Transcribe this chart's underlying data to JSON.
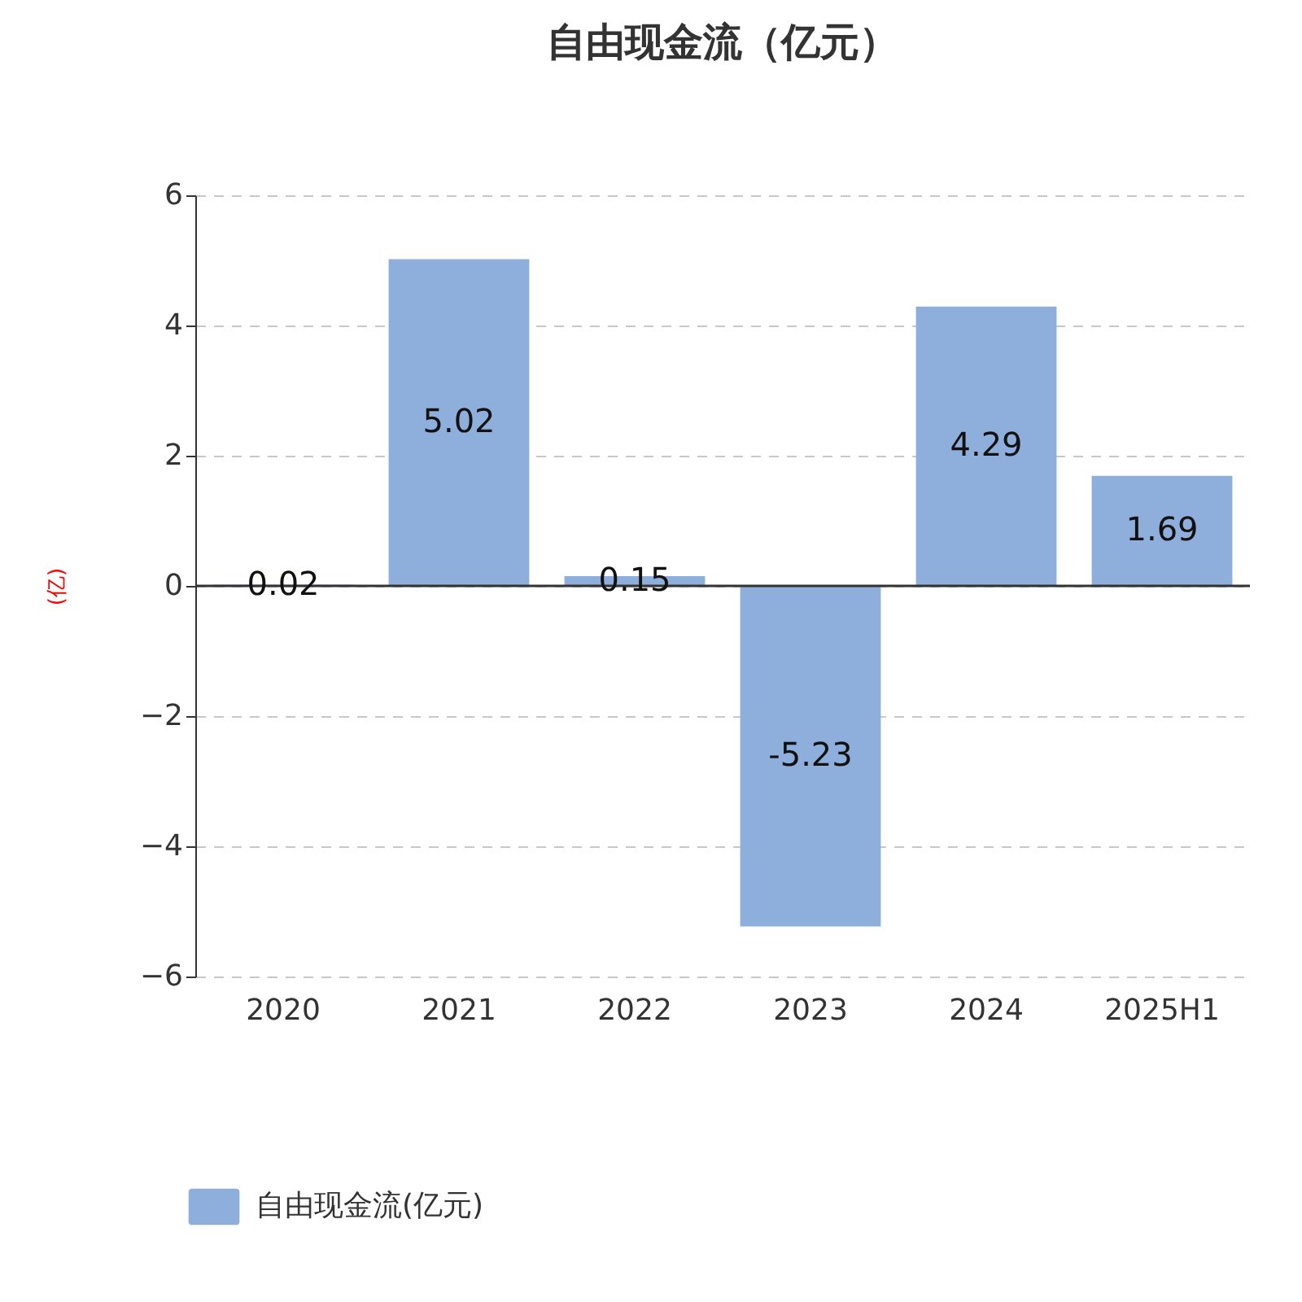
{
  "chart_data": {
    "type": "bar",
    "title": "自由现金流（亿元）",
    "ylabel": "(亿)",
    "categories": [
      "2020",
      "2021",
      "2022",
      "2023",
      "2024",
      "2025H1"
    ],
    "series": [
      {
        "name": "自由现金流(亿元)",
        "color": "#8eaedb",
        "values": [
          0.02,
          5.02,
          0.15,
          -5.23,
          4.29,
          1.69
        ]
      }
    ],
    "ylim": [
      -6,
      6
    ],
    "yticks": [
      -6,
      -4,
      -2,
      0,
      2,
      4,
      6
    ],
    "grid": "y",
    "legend": "bottom",
    "data_labels": true
  }
}
